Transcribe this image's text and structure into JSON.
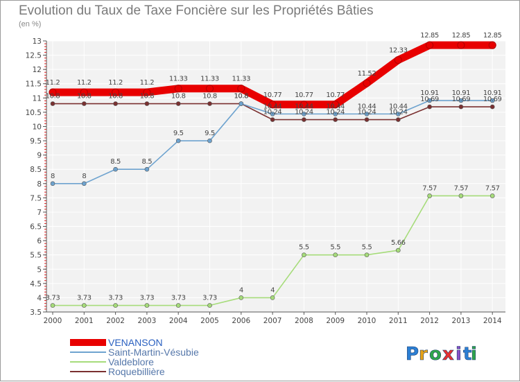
{
  "chart_data": {
    "type": "line",
    "title": "Evolution du Taux de Taxe Foncière sur les Propriétés Bâties",
    "unit_label": "(en %)",
    "x": [
      "2000",
      "2001",
      "2002",
      "2003",
      "2004",
      "2005",
      "2006",
      "2007",
      "2008",
      "2009",
      "2010",
      "2011",
      "2012",
      "2013",
      "2014"
    ],
    "y_ticks": [
      "3.5",
      "4",
      "4.5",
      "5",
      "5.5",
      "6",
      "6.5",
      "7",
      "7.5",
      "8",
      "8.5",
      "9",
      "9.5",
      "10",
      "10.5",
      "11",
      "11.5",
      "12",
      "12.5",
      "13"
    ],
    "ylim": [
      3.5,
      13
    ],
    "series": [
      {
        "name": "VENANSON",
        "color": "#e80000",
        "labels_shown": true,
        "values": [
          11.2,
          11.2,
          11.2,
          11.2,
          11.33,
          11.33,
          11.33,
          10.77,
          10.77,
          10.77,
          11.52,
          12.33,
          12.85,
          12.85,
          12.85
        ]
      },
      {
        "name": "Saint-Martin-Vésubie",
        "color": "#6ea3cf",
        "labels_shown": true,
        "values": [
          8,
          8,
          8.5,
          8.5,
          9.5,
          9.5,
          10.8,
          10.44,
          10.44,
          10.44,
          10.44,
          10.44,
          10.91,
          10.91,
          10.91
        ]
      },
      {
        "name": "Valdeblore",
        "color": "#a6dc7a",
        "labels_shown": true,
        "values": [
          3.73,
          3.73,
          3.73,
          3.73,
          3.73,
          3.73,
          4,
          4,
          5.5,
          5.5,
          5.5,
          5.66,
          7.57,
          7.57,
          7.57
        ]
      },
      {
        "name": "Roquebillière",
        "color": "#7a3030",
        "labels_shown": true,
        "values": [
          10.8,
          10.8,
          10.8,
          10.8,
          10.8,
          10.8,
          10.8,
          10.24,
          10.24,
          10.24,
          10.24,
          10.24,
          10.69,
          10.69,
          10.69
        ]
      }
    ]
  },
  "logo": {
    "letters": [
      "P",
      "r",
      "o",
      "x",
      "i",
      "t",
      "i"
    ],
    "colors": [
      "#2b7fd4",
      "#e8a317",
      "#2fa64a",
      "#e83030",
      "#8a4fc7",
      "#2b7fd4",
      "#2fa64a"
    ]
  }
}
